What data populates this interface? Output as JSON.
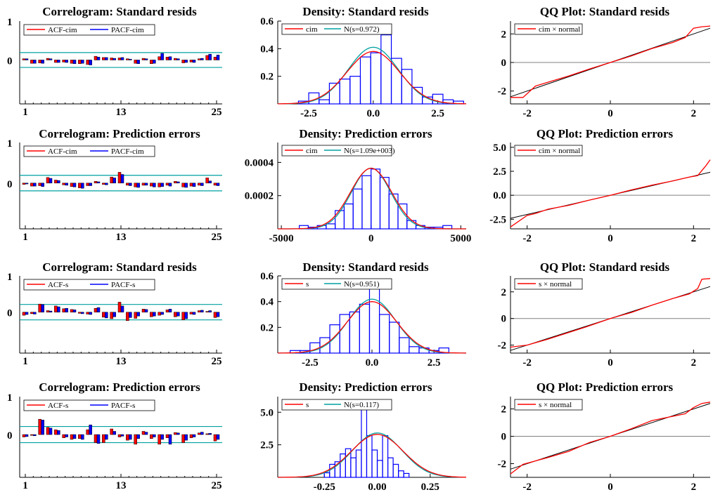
{
  "colors": {
    "red": "#ff0000",
    "blue": "#0000ff",
    "teal": "#00a0a0",
    "black": "#000000",
    "grey": "#808080"
  },
  "chart_data": [
    {
      "type": "bar",
      "kind": "correlogram",
      "title": "Correlogram: Standard resids",
      "legend": [
        "ACF-cim",
        "PACF-cim"
      ],
      "ylim": [
        -1,
        1
      ],
      "yticks": [
        "1",
        "0"
      ],
      "xticks": [
        "1",
        "13",
        "25"
      ],
      "band": 0.18,
      "lags": [
        1,
        2,
        3,
        4,
        5,
        6,
        7,
        8,
        9,
        10,
        11,
        12,
        13,
        14,
        15,
        16,
        17,
        18,
        19,
        20,
        21,
        22,
        23,
        24,
        25
      ],
      "series": [
        {
          "name": "ACF-cim",
          "values": [
            0.03,
            -0.08,
            -0.07,
            0.04,
            -0.06,
            -0.05,
            -0.08,
            -0.09,
            -0.11,
            0.09,
            0.06,
            0.05,
            0.05,
            0.03,
            -0.08,
            0.04,
            -0.09,
            0.08,
            0.07,
            0.04,
            -0.07,
            -0.05,
            0.03,
            0.11,
            0.07
          ]
        },
        {
          "name": "PACF-cim",
          "values": [
            0.03,
            -0.08,
            -0.08,
            0.03,
            -0.06,
            -0.06,
            -0.09,
            -0.08,
            -0.12,
            0.07,
            0.06,
            0.04,
            0.06,
            0.02,
            -0.09,
            0.03,
            -0.08,
            0.16,
            0.08,
            0.03,
            -0.06,
            -0.06,
            0.04,
            0.14,
            0.12
          ]
        }
      ]
    },
    {
      "type": "histogram",
      "kind": "density",
      "title": "Density: Standard resids",
      "legend": [
        "cim",
        "N(s=0.972)"
      ],
      "xlim": [
        -3.7,
        3.6
      ],
      "ylim": [
        0,
        0.6
      ],
      "xticks": [
        "-2.5",
        "0.0",
        "2.5"
      ],
      "yticks": [
        "0.6",
        "0.4",
        "0.2"
      ],
      "ytick_values": [
        0.6,
        0.4,
        0.2
      ],
      "xtick_values": [
        -2.5,
        0,
        2.5
      ],
      "bins_start": -2.9,
      "bin_width": 0.4,
      "bin_heights": [
        0.02,
        0.08,
        0.03,
        0.15,
        0.18,
        0.2,
        0.34,
        0.37,
        0.5,
        0.33,
        0.25,
        0.12,
        0.05,
        0.07,
        0.03,
        0.02
      ],
      "normal_sd": 0.972,
      "kde_peak": 0.38
    },
    {
      "type": "line",
      "kind": "qq",
      "title": "QQ Plot: Standard resids",
      "legend": [
        "cim × normal"
      ],
      "xlim": [
        -2.4,
        2.4
      ],
      "ylim": [
        -2.9,
        2.9
      ],
      "xticks": [
        "-2",
        "0",
        "2"
      ],
      "xtick_values": [
        -2,
        0,
        2
      ],
      "yticks": [
        "2",
        "0",
        "-2"
      ],
      "ytick_values": [
        2,
        0,
        -2
      ],
      "qq_points": [
        [
          -2.4,
          -2.45
        ],
        [
          -2.1,
          -2.45
        ],
        [
          -1.8,
          -1.65
        ],
        [
          -1.5,
          -1.38
        ],
        [
          -1,
          -0.95
        ],
        [
          -0.5,
          -0.45
        ],
        [
          0,
          0
        ],
        [
          0.5,
          0.45
        ],
        [
          1,
          0.98
        ],
        [
          1.5,
          1.4
        ],
        [
          1.8,
          1.75
        ],
        [
          2,
          2.4
        ],
        [
          2.2,
          2.5
        ],
        [
          2.4,
          2.55
        ]
      ]
    },
    {
      "type": "bar",
      "kind": "correlogram",
      "title": "Correlogram: Prediction errors",
      "legend": [
        "ACF-cim",
        "PACF-cim"
      ],
      "ylim": [
        -1,
        1
      ],
      "yticks": [
        "1",
        "0"
      ],
      "xticks": [
        "1",
        "13",
        "25"
      ],
      "band": 0.18,
      "lags": [
        1,
        2,
        3,
        4,
        5,
        6,
        7,
        8,
        9,
        10,
        11,
        12,
        13,
        14,
        15,
        16,
        17,
        18,
        19,
        20,
        21,
        22,
        23,
        24,
        25
      ],
      "series": [
        {
          "name": "ACF-cim",
          "values": [
            -0.03,
            -0.07,
            -0.06,
            0.13,
            0.07,
            -0.04,
            -0.08,
            -0.11,
            -0.06,
            0.04,
            -0.03,
            0.14,
            0.25,
            -0.05,
            -0.09,
            -0.05,
            -0.07,
            -0.09,
            -0.05,
            0.04,
            -0.09,
            -0.07,
            -0.05,
            0.12,
            -0.05
          ]
        },
        {
          "name": "PACF-cim",
          "values": [
            -0.02,
            -0.07,
            -0.08,
            0.11,
            0.06,
            -0.05,
            -0.09,
            -0.12,
            -0.06,
            0.03,
            -0.04,
            0.12,
            0.2,
            -0.06,
            -0.1,
            -0.05,
            -0.09,
            -0.08,
            -0.07,
            0.03,
            -0.1,
            -0.08,
            -0.06,
            0.05,
            -0.06
          ]
        }
      ]
    },
    {
      "type": "histogram",
      "kind": "density",
      "title": "Density: Prediction errors",
      "legend": [
        "cim",
        "N(s=1.09e+003)"
      ],
      "xlim": [
        -5200,
        5300
      ],
      "ylim": [
        0,
        0.00052
      ],
      "xticks": [
        "-5000",
        "0",
        "5000"
      ],
      "xtick_values": [
        -5000,
        0,
        5000
      ],
      "yticks": [
        "0.0004",
        "0.0002"
      ],
      "ytick_values": [
        0.0004,
        0.0002
      ],
      "bins_start": -4000,
      "bin_width": 500,
      "bin_heights": [
        2e-05,
        1e-05,
        2e-05,
        3e-05,
        0.00011,
        0.00015,
        0.00024,
        0.00032,
        0.00036,
        0.00031,
        0.00021,
        0.00015,
        5e-05,
        2e-05,
        1e-05,
        1e-05,
        2e-05
      ],
      "normal_sd": 1090,
      "kde_peak": 0.000365
    },
    {
      "type": "line",
      "kind": "qq",
      "title": "QQ Plot: Prediction errors",
      "legend": [
        "cim × normal"
      ],
      "xlim": [
        -2.4,
        2.4
      ],
      "ylim": [
        -3.5,
        5.5
      ],
      "xticks": [
        "-2",
        "0",
        "2"
      ],
      "xtick_values": [
        -2,
        0,
        2
      ],
      "yticks": [
        "5.0",
        "2.5",
        "0.0",
        "-2.5"
      ],
      "ytick_values": [
        5,
        2.5,
        0,
        -2.5
      ],
      "qq_points": [
        [
          -2.4,
          -3.3
        ],
        [
          -2,
          -2.1
        ],
        [
          -1.8,
          -1.9
        ],
        [
          -1.5,
          -1.45
        ],
        [
          -1,
          -1.05
        ],
        [
          -0.5,
          -0.5
        ],
        [
          0,
          0
        ],
        [
          0.5,
          0.55
        ],
        [
          1,
          1.05
        ],
        [
          1.5,
          1.5
        ],
        [
          1.9,
          1.9
        ],
        [
          2.1,
          2.05
        ],
        [
          2.3,
          3.1
        ],
        [
          2.4,
          3.7
        ]
      ]
    },
    {
      "type": "bar",
      "kind": "correlogram",
      "title": "Correlogram: Standard resids",
      "legend": [
        "ACF-s",
        "PACF-s"
      ],
      "ylim": [
        -1,
        1
      ],
      "yticks": [
        "1",
        "0"
      ],
      "xticks": [
        "1",
        "13",
        "25"
      ],
      "band": 0.2,
      "lags": [
        1,
        2,
        3,
        4,
        5,
        6,
        7,
        8,
        9,
        10,
        11,
        12,
        13,
        14,
        15,
        16,
        17,
        18,
        19,
        20,
        21,
        22,
        23,
        24,
        25
      ],
      "series": [
        {
          "name": "ACF-s",
          "values": [
            -0.08,
            -0.04,
            0.21,
            0.04,
            0.16,
            0.09,
            0.07,
            -0.03,
            -0.05,
            0.1,
            -0.13,
            -0.17,
            0.26,
            -0.22,
            -0.16,
            0.08,
            -0.12,
            -0.08,
            0.06,
            -0.12,
            -0.2,
            -0.05,
            0.04,
            0.02,
            -0.14
          ]
        },
        {
          "name": "PACF-s",
          "values": [
            -0.06,
            -0.05,
            0.2,
            0.03,
            0.14,
            0.1,
            0.06,
            -0.04,
            -0.06,
            0.12,
            -0.15,
            -0.12,
            0.16,
            -0.14,
            -0.1,
            0.07,
            -0.1,
            -0.06,
            0.08,
            -0.1,
            -0.17,
            -0.06,
            0.05,
            0.04,
            -0.12
          ]
        }
      ]
    },
    {
      "type": "histogram",
      "kind": "density",
      "title": "Density: Standard resids",
      "legend": [
        "s",
        "N(s=0.951)"
      ],
      "xlim": [
        -3.8,
        3.8
      ],
      "ylim": [
        0,
        0.6
      ],
      "xticks": [
        "-2.5",
        "0.0",
        "2.5"
      ],
      "xtick_values": [
        -2.5,
        0,
        2.5
      ],
      "yticks": [
        "0.6",
        "0.4",
        "0.2"
      ],
      "ytick_values": [
        0.6,
        0.4,
        0.2
      ],
      "bins_start": -3.3,
      "bin_width": 0.4,
      "bin_heights": [
        0.02,
        0.02,
        0.08,
        0.12,
        0.22,
        0.3,
        0.32,
        0.38,
        0.5,
        0.3,
        0.24,
        0.12,
        0.05,
        0.04,
        0.02,
        0.04
      ],
      "normal_sd": 0.951,
      "kde_peak": 0.4
    },
    {
      "type": "line",
      "kind": "qq",
      "title": "QQ Plot: Standard resids",
      "legend": [
        "s × normal"
      ],
      "xlim": [
        -2.4,
        2.4
      ],
      "ylim": [
        -2.6,
        3.2
      ],
      "xticks": [
        "-2",
        "0",
        "2"
      ],
      "xtick_values": [
        -2,
        0,
        2
      ],
      "yticks": [
        "2",
        "0",
        "-2"
      ],
      "ytick_values": [
        2,
        0,
        -2
      ],
      "qq_points": [
        [
          -2.4,
          -2.15
        ],
        [
          -2,
          -2
        ],
        [
          -1.5,
          -1.55
        ],
        [
          -1,
          -1.05
        ],
        [
          -0.6,
          -0.65
        ],
        [
          0,
          0
        ],
        [
          0.5,
          0.45
        ],
        [
          1,
          1
        ],
        [
          1.5,
          1.5
        ],
        [
          1.9,
          1.85
        ],
        [
          2.1,
          2.25
        ],
        [
          2.2,
          2.95
        ],
        [
          2.4,
          3
        ]
      ]
    },
    {
      "type": "bar",
      "kind": "correlogram",
      "title": "Correlogram: Prediction errors",
      "legend": [
        "ACF-s",
        "PACF-s"
      ],
      "ylim": [
        -1,
        1
      ],
      "yticks": [
        "1",
        "0"
      ],
      "xticks": [
        "1",
        "13",
        "25"
      ],
      "band": 0.2,
      "lags": [
        1,
        2,
        3,
        4,
        5,
        6,
        7,
        8,
        9,
        10,
        11,
        12,
        13,
        14,
        15,
        16,
        17,
        18,
        19,
        20,
        21,
        22,
        23,
        24,
        25
      ],
      "series": [
        {
          "name": "ACF-s",
          "values": [
            -0.06,
            -0.02,
            0.38,
            0.18,
            0.12,
            -0.08,
            -0.12,
            -0.1,
            0.12,
            -0.2,
            -0.2,
            0.14,
            -0.06,
            -0.14,
            -0.24,
            0.08,
            -0.1,
            -0.24,
            -0.08,
            0.05,
            -0.2,
            -0.08,
            0.04,
            0.02,
            -0.16
          ]
        },
        {
          "name": "PACF-s",
          "values": [
            -0.05,
            -0.03,
            0.36,
            0.16,
            0.1,
            -0.06,
            -0.1,
            -0.12,
            0.24,
            -0.22,
            -0.12,
            0.08,
            -0.04,
            -0.12,
            -0.1,
            0.06,
            -0.06,
            -0.12,
            -0.24,
            0.04,
            -0.14,
            -0.06,
            0.06,
            0.03,
            -0.12
          ]
        }
      ]
    },
    {
      "type": "histogram",
      "kind": "density",
      "title": "Density: Prediction errors",
      "legend": [
        "s",
        "N(s=0.117)"
      ],
      "xlim": [
        -0.47,
        0.42
      ],
      "ylim": [
        0,
        6.2
      ],
      "xticks": [
        "-0.25",
        "0.00",
        "0.25"
      ],
      "xtick_values": [
        -0.25,
        0,
        0.25
      ],
      "yticks": [
        "5.0",
        "2.5"
      ],
      "ytick_values": [
        5,
        2.5
      ],
      "bins_start": -0.25,
      "bin_width": 0.025,
      "bin_heights": [
        0.35,
        1,
        1.2,
        1.8,
        2.2,
        1.5,
        2.1,
        5.3,
        3.2,
        2.1,
        1.3,
        3.2,
        1.5,
        1.0,
        0.5,
        0.3
      ],
      "normal_sd": 0.117,
      "kde_peak": 3.3
    },
    {
      "type": "line",
      "kind": "qq",
      "title": "QQ Plot: Prediction errors",
      "legend": [
        "s × normal"
      ],
      "xlim": [
        -2.4,
        2.4
      ],
      "ylim": [
        -3,
        2.9
      ],
      "xticks": [
        "-2",
        "0",
        "2"
      ],
      "xtick_values": [
        -2,
        0,
        2
      ],
      "yticks": [
        "2",
        "0",
        "-2"
      ],
      "ytick_values": [
        2,
        0,
        -2
      ],
      "qq_points": [
        [
          -2.4,
          -2.75
        ],
        [
          -2.1,
          -2.05
        ],
        [
          -1.5,
          -1.55
        ],
        [
          -1,
          -1.1
        ],
        [
          -0.5,
          -0.45
        ],
        [
          0,
          0
        ],
        [
          0.5,
          0.55
        ],
        [
          1,
          1.15
        ],
        [
          1.4,
          1.4
        ],
        [
          1.8,
          1.65
        ],
        [
          2,
          2.1
        ],
        [
          2.2,
          2.4
        ],
        [
          2.4,
          2.5
        ]
      ]
    }
  ]
}
